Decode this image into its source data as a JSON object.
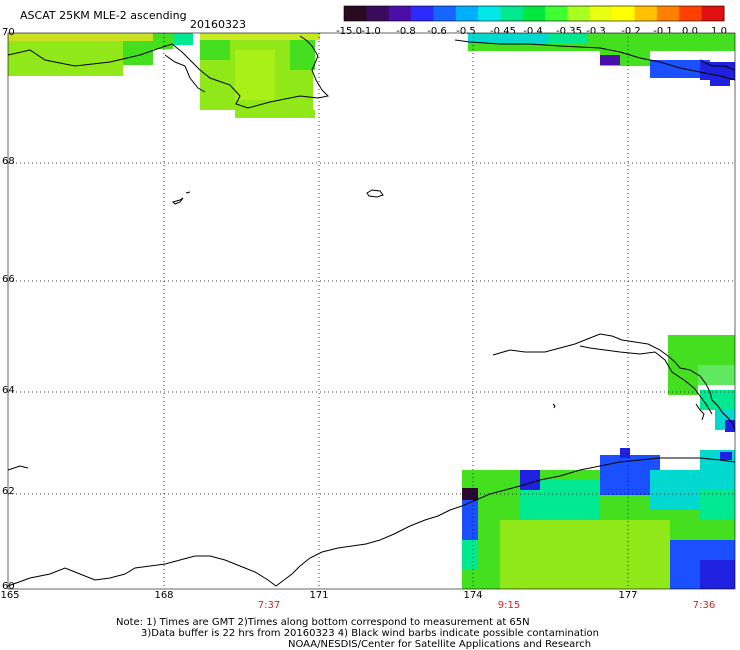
{
  "header": {
    "title": "ASCAT 25KM MLE-2 ascending",
    "date": "20160323"
  },
  "colorbar": {
    "labels": [
      "-15.0",
      "-1.0",
      "-0.8",
      "-0.6",
      "-0.5",
      "-0.45",
      "-0.4",
      "-0.35",
      "-0.3",
      "-0.2",
      "-0.1",
      "0.0",
      "1.0"
    ],
    "colors": [
      "#2a0a20",
      "#3a0a5c",
      "#4b0fa8",
      "#2b2bff",
      "#1565ff",
      "#00b0ff",
      "#00e8e8",
      "#00e890",
      "#00e840",
      "#40ff30",
      "#a8ff20",
      "#e8ff10",
      "#ffff00",
      "#ffc000",
      "#ff8000",
      "#ff4000",
      "#e01010"
    ]
  },
  "map": {
    "lat_labels": [
      "70",
      "68",
      "66",
      "64",
      "62",
      "60"
    ],
    "lon_labels": [
      "165",
      "168",
      "171",
      "174",
      "177"
    ],
    "time_labels": [
      "7:37",
      "9:15",
      "7:36"
    ],
    "colors": {
      "green": "#44e020",
      "lime": "#90e818",
      "yellowgreen": "#b8f010",
      "cyan": "#00d8d0",
      "teal": "#00e890",
      "blue": "#1a50ff",
      "deepblue": "#2020e0",
      "purple": "#4b0fa8",
      "dark": "#2a0a30",
      "red_text": "#cc2222"
    }
  },
  "footer": {
    "note_line1": "Note: 1) Times are GMT 2)Times along bottom correspond to measurement at 65N",
    "note_line2": "3)Data buffer is 22 hrs from 20160323 4) Black wind barbs indicate possible contamination",
    "note_line3": "NOAA/NESDIS/Center for Satellite Applications and Research"
  }
}
